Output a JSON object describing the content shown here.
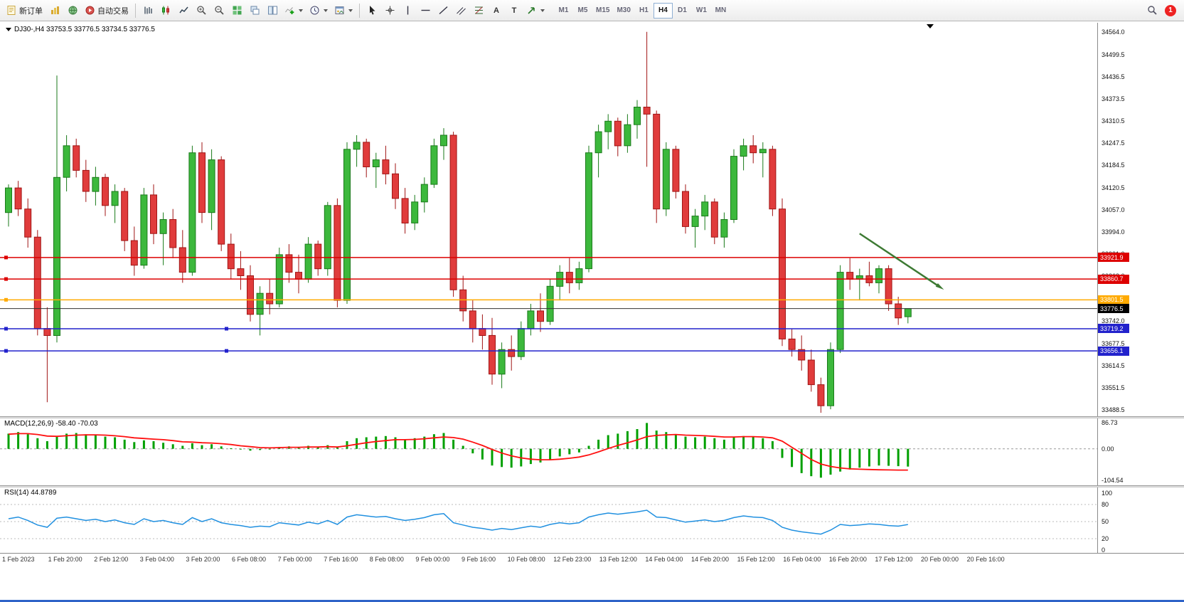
{
  "toolbar": {
    "new_order_label": "新订单",
    "autotrading_label": "自动交易",
    "text_tool_label": "A",
    "label_tool_label": "T",
    "timeframes": [
      "M1",
      "M5",
      "M15",
      "M30",
      "H1",
      "H4",
      "D1",
      "W1",
      "MN"
    ],
    "active_timeframe": "H4",
    "notification_count": "1"
  },
  "chart": {
    "title": "DJ30-,H4 33753.5 33776.5 33734.5 33776.5",
    "y_axis_labels": [
      "34564.0",
      "34499.5",
      "34436.5",
      "34373.5",
      "34310.5",
      "34247.5",
      "34184.5",
      "34120.5",
      "34057.0",
      "33994.0",
      "33931.0",
      "33868.0",
      "33805.0",
      "33742.0",
      "33677.5",
      "33614.5",
      "33551.5",
      "33488.5"
    ],
    "hlines": [
      {
        "price": 33921.9,
        "label": "33921.9",
        "color": "#dd0000",
        "style": "red-resistance"
      },
      {
        "price": 33860.7,
        "label": "33860.7",
        "color": "#dd0000",
        "style": "red-resistance"
      },
      {
        "price": 33801.5,
        "label": "33801.5",
        "color": "#ffaa00",
        "style": "orange-pivot"
      },
      {
        "price": 33719.2,
        "label": "33719.2",
        "color": "#2222cc",
        "style": "blue-support"
      },
      {
        "price": 33656.1,
        "label": "33656.1",
        "color": "#2222cc",
        "style": "blue-support"
      }
    ],
    "current_price": {
      "value": 33776.5,
      "label": "33776.5",
      "badge_color": "#000000"
    },
    "annotation_arrow": {
      "from_bar": 88,
      "from_price": 33990,
      "to_bar": 96.3,
      "to_price": 33838,
      "color": "#3d7a33"
    }
  },
  "macd_panel": {
    "label": "MACD(12,26,9) -58.40 -70.03",
    "scale_labels": [
      "86.73",
      "0.00",
      "-104.54"
    ]
  },
  "rsi_panel": {
    "label": "RSI(14) 44.8789",
    "scale_labels": [
      "100",
      "80",
      "50",
      "20",
      "0"
    ]
  },
  "time_axis": [
    "1 Feb 2023",
    "1 Feb 20:00",
    "2 Feb 12:00",
    "3 Feb 04:00",
    "3 Feb 20:00",
    "6 Feb 08:00",
    "7 Feb 00:00",
    "7 Feb 16:00",
    "8 Feb 08:00",
    "9 Feb 00:00",
    "9 Feb 16:00",
    "10 Feb 08:00",
    "12 Feb 23:00",
    "13 Feb 12:00",
    "14 Feb 04:00",
    "14 Feb 20:00",
    "15 Feb 12:00",
    "16 Feb 04:00",
    "16 Feb 20:00",
    "17 Feb 12:00",
    "20 Feb 00:00",
    "20 Feb 16:00"
  ],
  "colors": {
    "bull_fill": "#3cb83c",
    "bull_edge": "#1a7a1a",
    "bear_fill": "#e03c3c",
    "bear_edge": "#a01515",
    "macd_hist": "#00a000",
    "macd_signal": "#ff1010",
    "rsi_line": "#2090e0",
    "current_price_line": "#333333"
  },
  "chart_data": [
    {
      "type": "candlestick",
      "title": "DJ30-,H4",
      "price_axis_range": [
        33470,
        34590
      ],
      "open_high_low_close": [
        [
          34050,
          34130,
          34010,
          34120
        ],
        [
          34120,
          34140,
          34040,
          34060
        ],
        [
          34060,
          34090,
          33950,
          33980
        ],
        [
          33980,
          34000,
          33700,
          33720
        ],
        [
          33720,
          33780,
          33510,
          33700
        ],
        [
          33700,
          34440,
          33680,
          34150
        ],
        [
          34150,
          34270,
          34110,
          34240
        ],
        [
          34240,
          34260,
          34150,
          34170
        ],
        [
          34170,
          34200,
          34080,
          34110
        ],
        [
          34110,
          34180,
          34070,
          34150
        ],
        [
          34150,
          34160,
          34040,
          34070
        ],
        [
          34070,
          34130,
          34020,
          34110
        ],
        [
          34110,
          34120,
          33940,
          33970
        ],
        [
          33970,
          34010,
          33870,
          33900
        ],
        [
          33900,
          34120,
          33890,
          34100
        ],
        [
          34100,
          34130,
          33960,
          33990
        ],
        [
          33990,
          34050,
          33900,
          34030
        ],
        [
          34030,
          34060,
          33920,
          33950
        ],
        [
          33950,
          34000,
          33850,
          33880
        ],
        [
          33880,
          34240,
          33870,
          34220
        ],
        [
          34220,
          34250,
          34020,
          34050
        ],
        [
          34050,
          34230,
          34000,
          34200
        ],
        [
          34200,
          34210,
          33940,
          33960
        ],
        [
          33960,
          33990,
          33860,
          33890
        ],
        [
          33890,
          33940,
          33830,
          33870
        ],
        [
          33870,
          33900,
          33740,
          33760
        ],
        [
          33760,
          33840,
          33700,
          33820
        ],
        [
          33820,
          33860,
          33760,
          33790
        ],
        [
          33790,
          33950,
          33780,
          33930
        ],
        [
          33930,
          33960,
          33850,
          33880
        ],
        [
          33880,
          33930,
          33820,
          33860
        ],
        [
          33860,
          33980,
          33850,
          33960
        ],
        [
          33960,
          33970,
          33870,
          33890
        ],
        [
          33890,
          34080,
          33870,
          34070
        ],
        [
          34070,
          34090,
          33780,
          33800
        ],
        [
          33800,
          34250,
          33790,
          34230
        ],
        [
          34230,
          34270,
          34180,
          34250
        ],
        [
          34250,
          34260,
          34150,
          34180
        ],
        [
          34180,
          34220,
          34120,
          34200
        ],
        [
          34200,
          34240,
          34130,
          34160
        ],
        [
          34160,
          34190,
          34060,
          34090
        ],
        [
          34090,
          34120,
          33990,
          34020
        ],
        [
          34020,
          34100,
          34000,
          34080
        ],
        [
          34080,
          34150,
          34050,
          34130
        ],
        [
          34130,
          34260,
          34120,
          34240
        ],
        [
          34240,
          34290,
          34200,
          34270
        ],
        [
          34270,
          34280,
          33810,
          33830
        ],
        [
          33830,
          33870,
          33740,
          33770
        ],
        [
          33770,
          33800,
          33680,
          33720
        ],
        [
          33720,
          33760,
          33660,
          33700
        ],
        [
          33700,
          33750,
          33560,
          33590
        ],
        [
          33590,
          33680,
          33550,
          33660
        ],
        [
          33660,
          33700,
          33600,
          33640
        ],
        [
          33640,
          33740,
          33630,
          33720
        ],
        [
          33720,
          33790,
          33700,
          33770
        ],
        [
          33770,
          33820,
          33710,
          33740
        ],
        [
          33740,
          33860,
          33730,
          33840
        ],
        [
          33840,
          33900,
          33800,
          33880
        ],
        [
          33880,
          33920,
          33820,
          33850
        ],
        [
          33850,
          33910,
          33830,
          33890
        ],
        [
          33890,
          34240,
          33880,
          34220
        ],
        [
          34220,
          34300,
          34150,
          34280
        ],
        [
          34280,
          34330,
          34230,
          34310
        ],
        [
          34310,
          34320,
          34210,
          34240
        ],
        [
          34240,
          34330,
          34220,
          34300
        ],
        [
          34300,
          34370,
          34260,
          34350
        ],
        [
          34350,
          34564,
          34180,
          34330
        ],
        [
          34330,
          34340,
          34020,
          34060
        ],
        [
          34060,
          34250,
          34040,
          34230
        ],
        [
          34230,
          34240,
          34090,
          34110
        ],
        [
          34110,
          34130,
          33990,
          34010
        ],
        [
          34010,
          34060,
          33950,
          34040
        ],
        [
          34040,
          34100,
          34000,
          34080
        ],
        [
          34080,
          34090,
          33960,
          33980
        ],
        [
          33980,
          34050,
          33950,
          34030
        ],
        [
          34030,
          34230,
          34020,
          34210
        ],
        [
          34210,
          34260,
          34170,
          34240
        ],
        [
          34240,
          34270,
          34190,
          34220
        ],
        [
          34220,
          34250,
          34150,
          34230
        ],
        [
          34230,
          34240,
          34040,
          34060
        ],
        [
          34060,
          34090,
          33670,
          33690
        ],
        [
          33690,
          33720,
          33640,
          33660
        ],
        [
          33660,
          33700,
          33600,
          33630
        ],
        [
          33630,
          33660,
          33540,
          33560
        ],
        [
          33560,
          33580,
          33480,
          33500
        ],
        [
          33500,
          33680,
          33490,
          33660
        ],
        [
          33660,
          33900,
          33650,
          33880
        ],
        [
          33880,
          33920,
          33830,
          33860
        ],
        [
          33860,
          33890,
          33800,
          33870
        ],
        [
          33870,
          33910,
          33840,
          33850
        ],
        [
          33850,
          33900,
          33820,
          33890
        ],
        [
          33890,
          33900,
          33770,
          33790
        ],
        [
          33790,
          33810,
          33730,
          33750
        ],
        [
          33753.5,
          33776.5,
          33734.5,
          33776.5
        ]
      ]
    },
    {
      "type": "bar",
      "name": "MACD(12,26,9)",
      "value": -58.4,
      "signal_value": -70.03,
      "axis_range": [
        -120,
        100
      ],
      "histogram": [
        50,
        55,
        48,
        35,
        25,
        40,
        50,
        52,
        48,
        45,
        40,
        38,
        30,
        22,
        28,
        25,
        20,
        15,
        10,
        18,
        12,
        15,
        8,
        2,
        -2,
        -6,
        -4,
        0,
        6,
        8,
        5,
        10,
        6,
        12,
        4,
        25,
        35,
        38,
        40,
        42,
        38,
        32,
        35,
        40,
        48,
        52,
        30,
        10,
        -15,
        -35,
        -55,
        -60,
        -62,
        -58,
        -50,
        -45,
        -35,
        -25,
        -18,
        -12,
        10,
        30,
        45,
        50,
        58,
        65,
        85,
        60,
        55,
        48,
        40,
        38,
        40,
        35,
        30,
        38,
        42,
        40,
        35,
        25,
        -30,
        -60,
        -80,
        -90,
        -95,
        -85,
        -75,
        -68,
        -62,
        -58,
        -55,
        -56,
        -57,
        -58.4
      ],
      "signal_line": [
        48,
        50,
        50,
        47,
        42,
        41,
        43,
        45,
        46,
        46,
        45,
        43,
        40,
        36,
        34,
        32,
        30,
        27,
        23,
        22,
        20,
        19,
        17,
        14,
        10,
        7,
        4,
        3,
        4,
        5,
        5,
        6,
        6,
        7,
        6,
        10,
        15,
        20,
        24,
        27,
        30,
        30,
        31,
        33,
        36,
        39,
        37,
        32,
        22,
        11,
        -2,
        -14,
        -23,
        -30,
        -34,
        -36,
        -36,
        -34,
        -31,
        -27,
        -20,
        -10,
        1,
        11,
        20,
        29,
        40,
        44,
        46,
        47,
        45,
        44,
        43,
        41,
        39,
        39,
        40,
        40,
        39,
        36,
        25,
        5,
        -15,
        -35,
        -50,
        -58,
        -63,
        -66,
        -67,
        -68,
        -69,
        -69.5,
        -70,
        -70.03
      ]
    },
    {
      "type": "line",
      "name": "RSI(14)",
      "value": 44.8789,
      "axis_range": [
        0,
        100
      ],
      "values": [
        55,
        58,
        52,
        44,
        40,
        56,
        58,
        55,
        52,
        54,
        50,
        53,
        48,
        45,
        55,
        50,
        52,
        48,
        45,
        57,
        50,
        55,
        48,
        45,
        43,
        40,
        42,
        41,
        48,
        46,
        44,
        49,
        46,
        52,
        45,
        58,
        62,
        60,
        58,
        59,
        55,
        52,
        54,
        57,
        62,
        64,
        48,
        44,
        40,
        38,
        35,
        38,
        36,
        39,
        42,
        40,
        45,
        48,
        46,
        48,
        58,
        62,
        65,
        63,
        65,
        67,
        70,
        58,
        57,
        53,
        49,
        51,
        53,
        50,
        52,
        57,
        60,
        58,
        57,
        52,
        40,
        35,
        32,
        30,
        28,
        35,
        45,
        43,
        44,
        46,
        45,
        43,
        42,
        44.88
      ]
    }
  ]
}
